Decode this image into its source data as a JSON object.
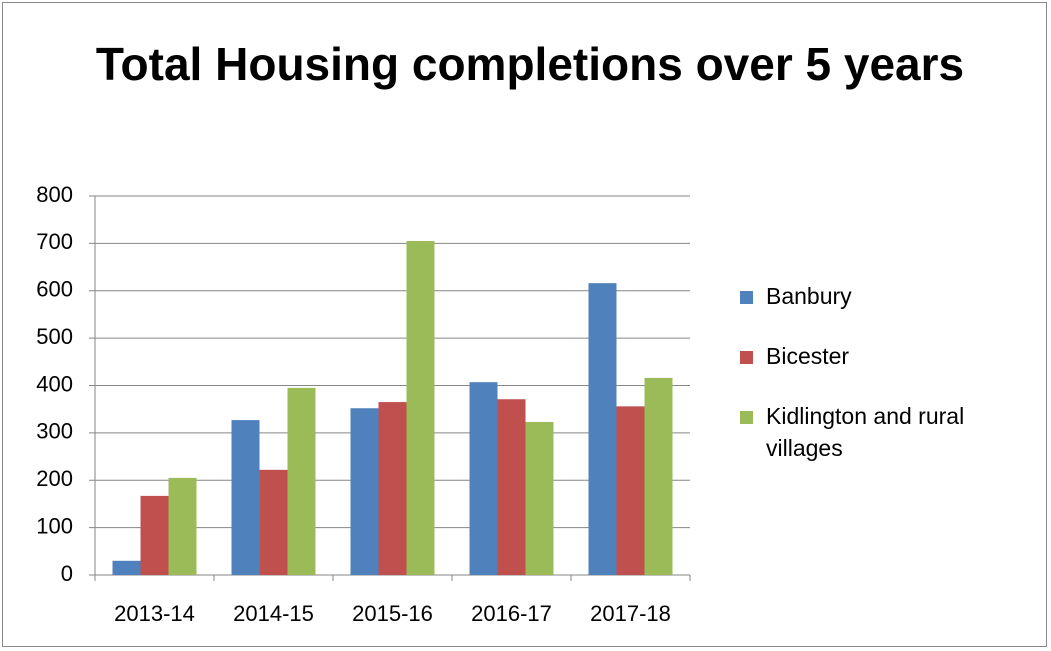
{
  "chart_data": {
    "type": "bar",
    "title": "Total Housing completions over 5 years",
    "categories": [
      "2013-14",
      "2014-15",
      "2015-16",
      "2016-17",
      "2017-18"
    ],
    "series": [
      {
        "name": "Banbury",
        "color": "#4f81bd",
        "values": [
          30,
          327,
          352,
          407,
          616
        ]
      },
      {
        "name": "Bicester",
        "color": "#c0504d",
        "values": [
          167,
          222,
          365,
          371,
          356
        ]
      },
      {
        "name": "Kidlington and rural villages",
        "color": "#9bbb59",
        "values": [
          205,
          395,
          705,
          323,
          416
        ]
      }
    ],
    "ylim": [
      0,
      800
    ],
    "yticks": [
      0,
      100,
      200,
      300,
      400,
      500,
      600,
      700,
      800
    ],
    "grid": true,
    "legend": "right"
  }
}
